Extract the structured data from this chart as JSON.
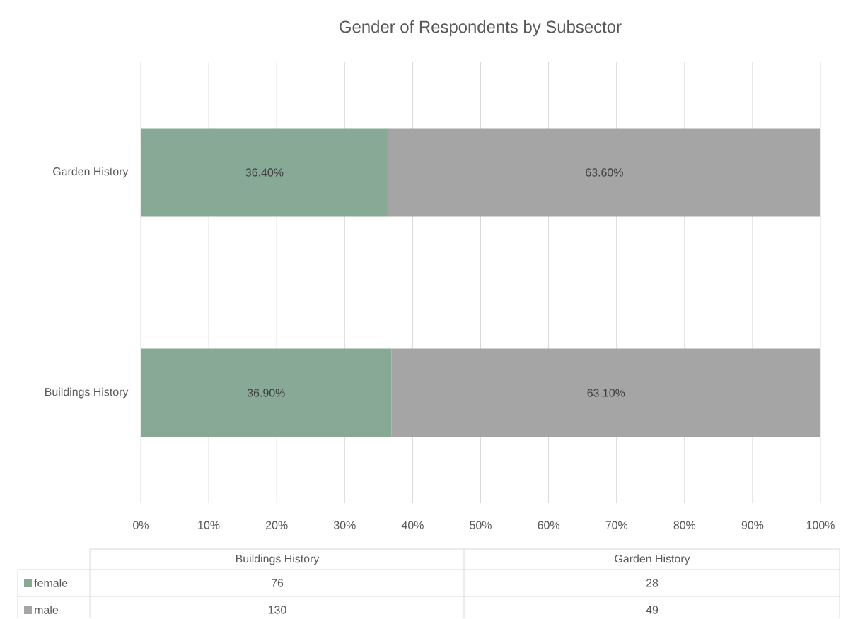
{
  "chart_data": {
    "type": "bar",
    "title": "Gender of Respondents by Subsector",
    "orientation": "horizontal",
    "stacked": true,
    "categories": [
      "Garden History",
      "Buildings History"
    ],
    "series": [
      {
        "name": "female",
        "color": "#87a996",
        "values": [
          36.4,
          36.9
        ],
        "value_labels": [
          "36.40%",
          "36.90%"
        ]
      },
      {
        "name": "male",
        "color": "#a5a5a5",
        "values": [
          63.6,
          63.1
        ],
        "value_labels": [
          "63.60%",
          "63.10%"
        ]
      }
    ],
    "xlim": [
      0,
      100
    ],
    "xticks": [
      {
        "value": 0,
        "label": "0%"
      },
      {
        "value": 10,
        "label": "10%"
      },
      {
        "value": 20,
        "label": "20%"
      },
      {
        "value": 30,
        "label": "30%"
      },
      {
        "value": 40,
        "label": "40%"
      },
      {
        "value": 50,
        "label": "50%"
      },
      {
        "value": 60,
        "label": "60%"
      },
      {
        "value": 70,
        "label": "70%"
      },
      {
        "value": 80,
        "label": "80%"
      },
      {
        "value": 90,
        "label": "90%"
      },
      {
        "value": 100,
        "label": "100%"
      }
    ],
    "grid": "x",
    "legend": "bottom",
    "annotations": [
      "76",
      "28",
      "130",
      "49"
    ]
  }
}
